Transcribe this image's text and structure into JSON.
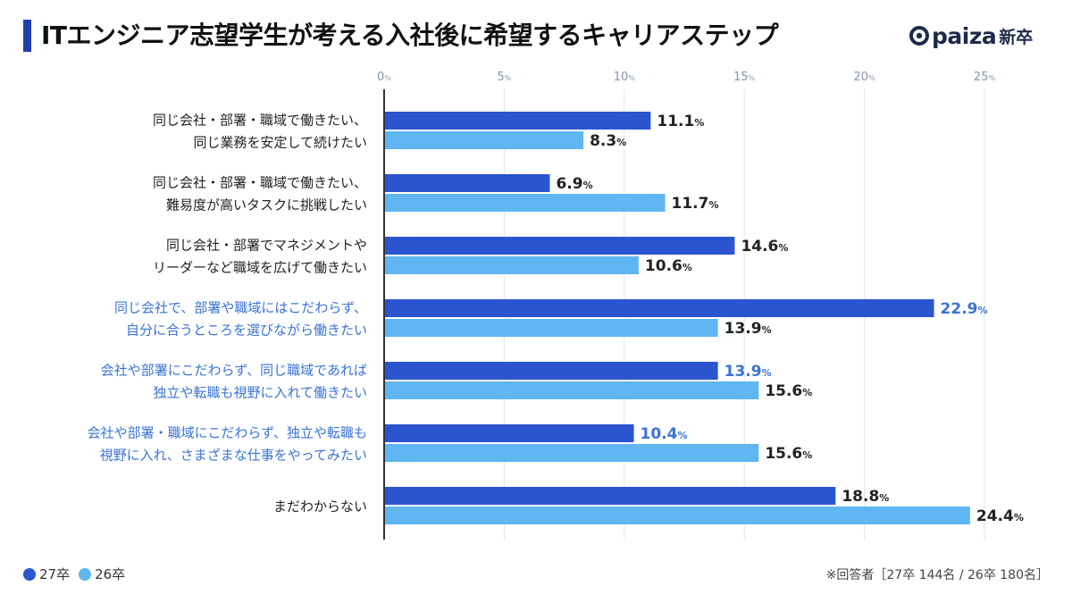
{
  "header": {
    "title": "ITエンジニア志望学生が考える入社後に希望するキャリアステップ",
    "logo_text": "paiza",
    "logo_sub": "新卒"
  },
  "colors": {
    "series_27": "#2b55cf",
    "series_26": "#5fb6f0",
    "highlight_label": "#3a73d6",
    "axis": "#333333",
    "grid": "#dde6f0",
    "tick": "#8a96a6"
  },
  "chart_data": {
    "type": "bar",
    "orientation": "horizontal",
    "title": "ITエンジニア志望学生が考える入社後に希望するキャリアステップ",
    "xlim": [
      0,
      25
    ],
    "xticks": [
      0,
      5,
      10,
      15,
      20,
      25
    ],
    "tick_suffix": "%",
    "value_suffix": "%",
    "categories": [
      {
        "lines": [
          "同じ会社・部署・職域で働きたい、",
          "同じ業務を安定して続けたい"
        ],
        "highlight": false
      },
      {
        "lines": [
          "同じ会社・部署・職域で働きたい、",
          "難易度が高いタスクに挑戦したい"
        ],
        "highlight": false
      },
      {
        "lines": [
          "同じ会社・部署でマネジメントや",
          "リーダーなど職域を広げて働きたい"
        ],
        "highlight": false
      },
      {
        "lines": [
          "同じ会社で、部署や職域にはこだわらず、",
          "自分に合うところを選びながら働きたい"
        ],
        "highlight": true
      },
      {
        "lines": [
          "会社や部署にこだわらず、同じ職域であれば",
          "独立や転職も視野に入れて働きたい"
        ],
        "highlight": true
      },
      {
        "lines": [
          "会社や部署・職域にこだわらず、独立や転職も",
          "視野に入れ、さまざまな仕事をやってみたい"
        ],
        "highlight": true
      },
      {
        "lines": [
          "まだわからない"
        ],
        "highlight": false
      }
    ],
    "series": [
      {
        "name": "27卒",
        "values": [
          11.1,
          6.9,
          14.6,
          22.9,
          13.9,
          10.4,
          18.8
        ],
        "label_highlight": [
          false,
          false,
          false,
          true,
          true,
          true,
          false
        ]
      },
      {
        "name": "26卒",
        "values": [
          8.3,
          11.7,
          10.6,
          13.9,
          15.6,
          15.6,
          24.4
        ],
        "label_highlight": [
          false,
          false,
          false,
          false,
          false,
          false,
          false
        ]
      }
    ],
    "legend": [
      "27卒",
      "26卒"
    ],
    "legend_position": "bottom-left",
    "note": "※回答者［27卒 144名 / 26卒 180名］"
  }
}
